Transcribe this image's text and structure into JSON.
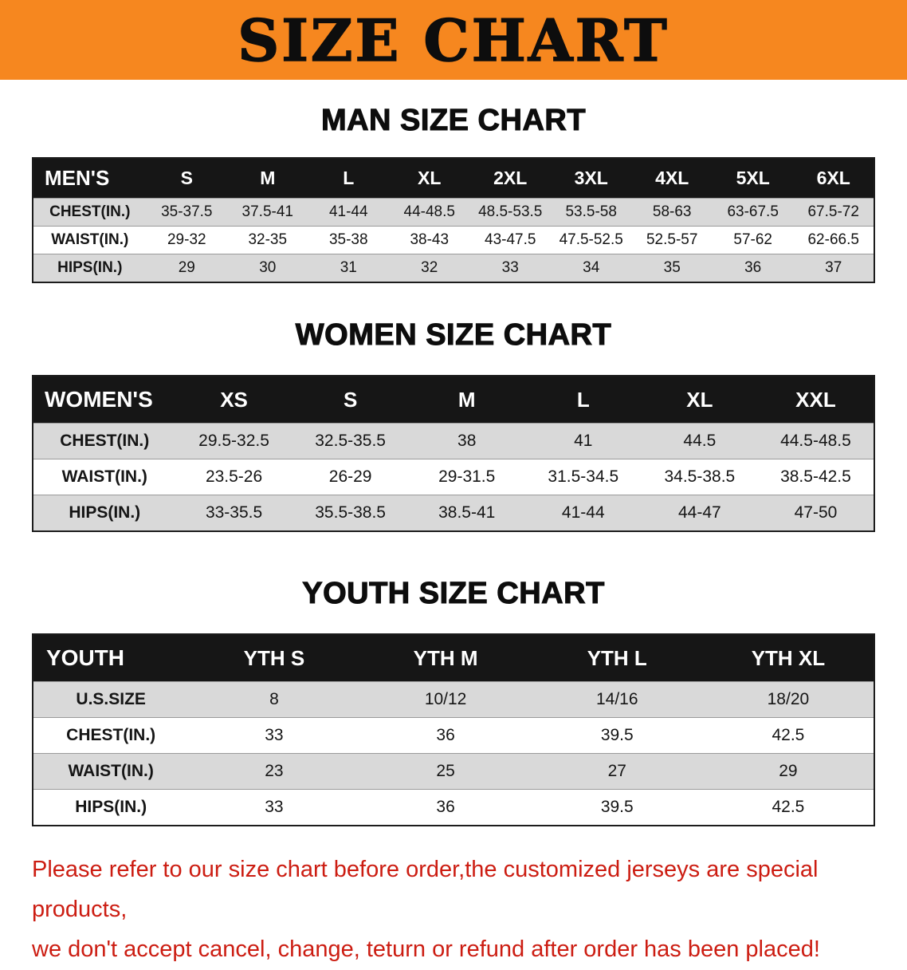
{
  "banner": {
    "title": "SIZE CHART"
  },
  "sections": {
    "men": {
      "heading": "MAN SIZE CHART",
      "table": {
        "header": [
          "MEN'S",
          "S",
          "M",
          "L",
          "XL",
          "2XL",
          "3XL",
          "4XL",
          "5XL",
          "6XL"
        ],
        "rows": [
          [
            "CHEST(IN.)",
            "35-37.5",
            "37.5-41",
            "41-44",
            "44-48.5",
            "48.5-53.5",
            "53.5-58",
            "58-63",
            "63-67.5",
            "67.5-72"
          ],
          [
            "WAIST(IN.)",
            "29-32",
            "32-35",
            "35-38",
            "38-43",
            "43-47.5",
            "47.5-52.5",
            "52.5-57",
            "57-62",
            "62-66.5"
          ],
          [
            "HIPS(IN.)",
            "29",
            "30",
            "31",
            "32",
            "33",
            "34",
            "35",
            "36",
            "37"
          ]
        ]
      }
    },
    "women": {
      "heading": "WOMEN SIZE CHART",
      "table": {
        "header": [
          "WOMEN'S",
          "XS",
          "S",
          "M",
          "L",
          "XL",
          "XXL"
        ],
        "rows": [
          [
            "CHEST(IN.)",
            "29.5-32.5",
            "32.5-35.5",
            "38",
            "41",
            "44.5",
            "44.5-48.5"
          ],
          [
            "WAIST(IN.)",
            "23.5-26",
            "26-29",
            "29-31.5",
            "31.5-34.5",
            "34.5-38.5",
            "38.5-42.5"
          ],
          [
            "HIPS(IN.)",
            "33-35.5",
            "35.5-38.5",
            "38.5-41",
            "41-44",
            "44-47",
            "47-50"
          ]
        ]
      }
    },
    "youth": {
      "heading": "YOUTH SIZE CHART",
      "table": {
        "header": [
          "YOUTH",
          "YTH S",
          "YTH M",
          "YTH L",
          "YTH XL"
        ],
        "rows": [
          [
            "U.S.SIZE",
            "8",
            "10/12",
            "14/16",
            "18/20"
          ],
          [
            "CHEST(IN.)",
            "33",
            "36",
            "39.5",
            "42.5"
          ],
          [
            "WAIST(IN.)",
            "23",
            "25",
            "27",
            "29"
          ],
          [
            "HIPS(IN.)",
            "33",
            "36",
            "39.5",
            "42.5"
          ]
        ]
      }
    }
  },
  "disclaimer": {
    "line1": "Please refer to our size chart before order,the customized jerseys are special products,",
    "line2": "we don't accept cancel, change, teturn or refund after order has been placed!"
  },
  "colors": {
    "banner_bg": "#f6871f",
    "header_bg": "#161616",
    "row_alt_bg": "#d9d9d9",
    "disclaimer_red": "#cc1d12"
  }
}
